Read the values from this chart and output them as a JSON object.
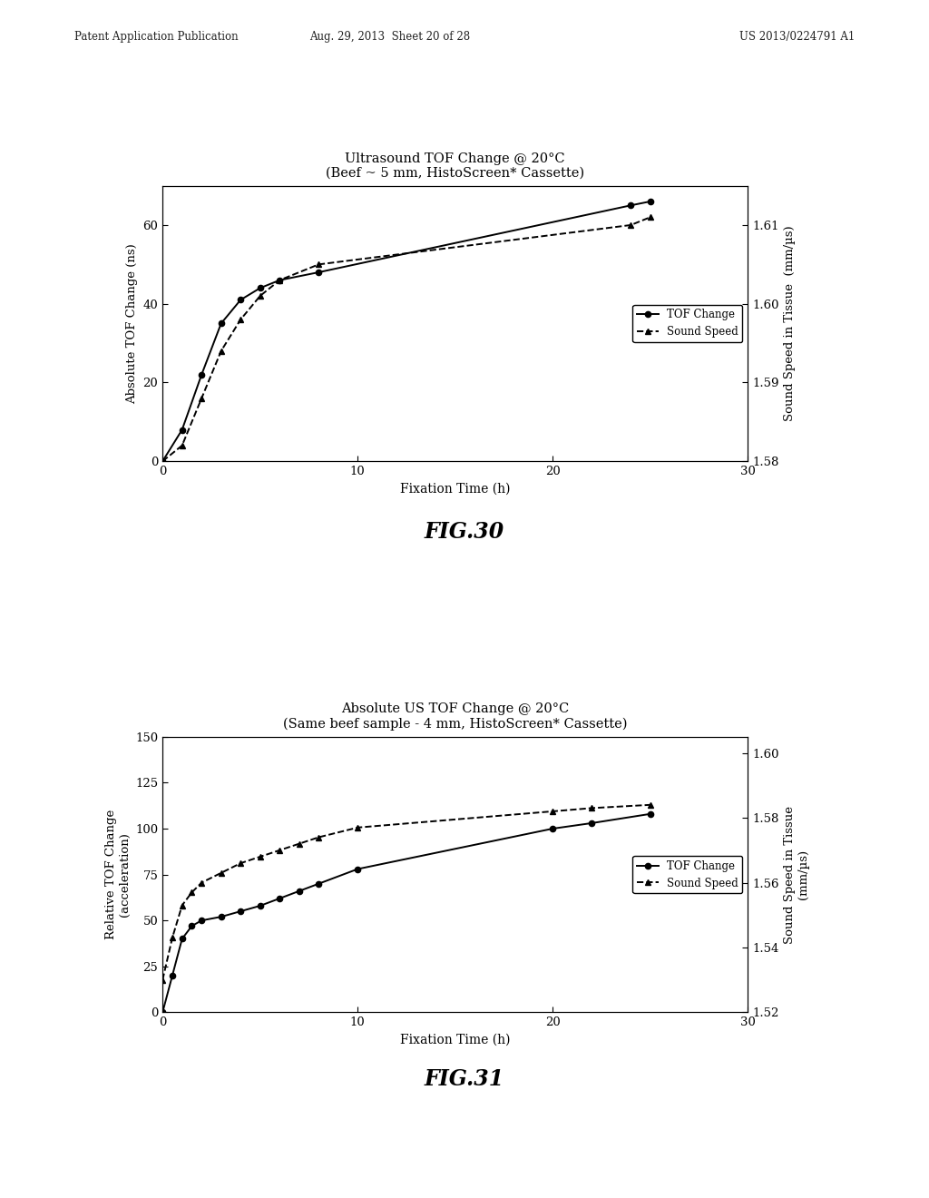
{
  "fig30": {
    "title_line1": "Ultrasound TOF Change @ 20°C",
    "title_line2": "(Beef ~ 5 mm, HistoScreen* Cassette)",
    "xlabel": "Fixation Time (h)",
    "ylabel_left": "Absolute TOF Change (ns)",
    "ylabel_right": "Sound Speed in Tissue  (mm/µs)",
    "xlim": [
      0,
      30
    ],
    "ylim_left": [
      0,
      70
    ],
    "ylim_right": [
      1.58,
      1.615
    ],
    "xticks": [
      0,
      10,
      20,
      30
    ],
    "yticks_left": [
      0,
      20,
      40,
      60
    ],
    "yticks_right": [
      1.58,
      1.59,
      1.6,
      1.61
    ],
    "tof_x": [
      0,
      1,
      2,
      3,
      4,
      5,
      6,
      8,
      24,
      25
    ],
    "tof_y": [
      0,
      8,
      22,
      35,
      41,
      44,
      46,
      48,
      65,
      66
    ],
    "speed_x": [
      0,
      1,
      2,
      3,
      4,
      5,
      6,
      8,
      24,
      25
    ],
    "speed_y": [
      1.58,
      1.582,
      1.588,
      1.594,
      1.598,
      1.601,
      1.603,
      1.605,
      1.61,
      1.611
    ],
    "legend_tof": "TOF Change",
    "legend_speed": "Sound Speed",
    "fig_label": "FIG.30"
  },
  "fig31": {
    "title_line1": "Absolute US TOF Change @ 20°C",
    "title_line2": "(Same beef sample - 4 mm, HistoScreen* Cassette)",
    "xlabel": "Fixation Time (h)",
    "ylabel_left": "Relative TOF Change\n(acceleration)",
    "ylabel_right": "Sound Speed in Tissue\n(mm/µs)",
    "xlim": [
      0,
      30
    ],
    "ylim_left": [
      0,
      150
    ],
    "ylim_right": [
      1.52,
      1.605
    ],
    "xticks": [
      0,
      10,
      20,
      30
    ],
    "yticks_left": [
      0,
      25,
      50,
      75,
      100,
      125,
      150
    ],
    "yticks_right": [
      1.52,
      1.54,
      1.56,
      1.58,
      1.6
    ],
    "tof_x": [
      0,
      0.5,
      1,
      1.5,
      2,
      3,
      4,
      5,
      6,
      7,
      8,
      10,
      20,
      22,
      25
    ],
    "tof_y": [
      0,
      20,
      40,
      47,
      50,
      52,
      55,
      58,
      62,
      66,
      70,
      78,
      100,
      103,
      108
    ],
    "speed_x": [
      0,
      0.5,
      1,
      1.5,
      2,
      3,
      4,
      5,
      6,
      7,
      8,
      10,
      20,
      22,
      25
    ],
    "speed_y": [
      1.53,
      1.543,
      1.553,
      1.557,
      1.56,
      1.563,
      1.566,
      1.568,
      1.57,
      1.572,
      1.574,
      1.577,
      1.582,
      1.583,
      1.584
    ],
    "legend_tof": "TOF Change",
    "legend_speed": "Sound Speed",
    "fig_label": "FIG.31"
  },
  "header_left": "Patent Application Publication",
  "header_mid": "Aug. 29, 2013  Sheet 20 of 28",
  "header_right": "US 2013/0224791 A1",
  "bg_color": "#ffffff"
}
